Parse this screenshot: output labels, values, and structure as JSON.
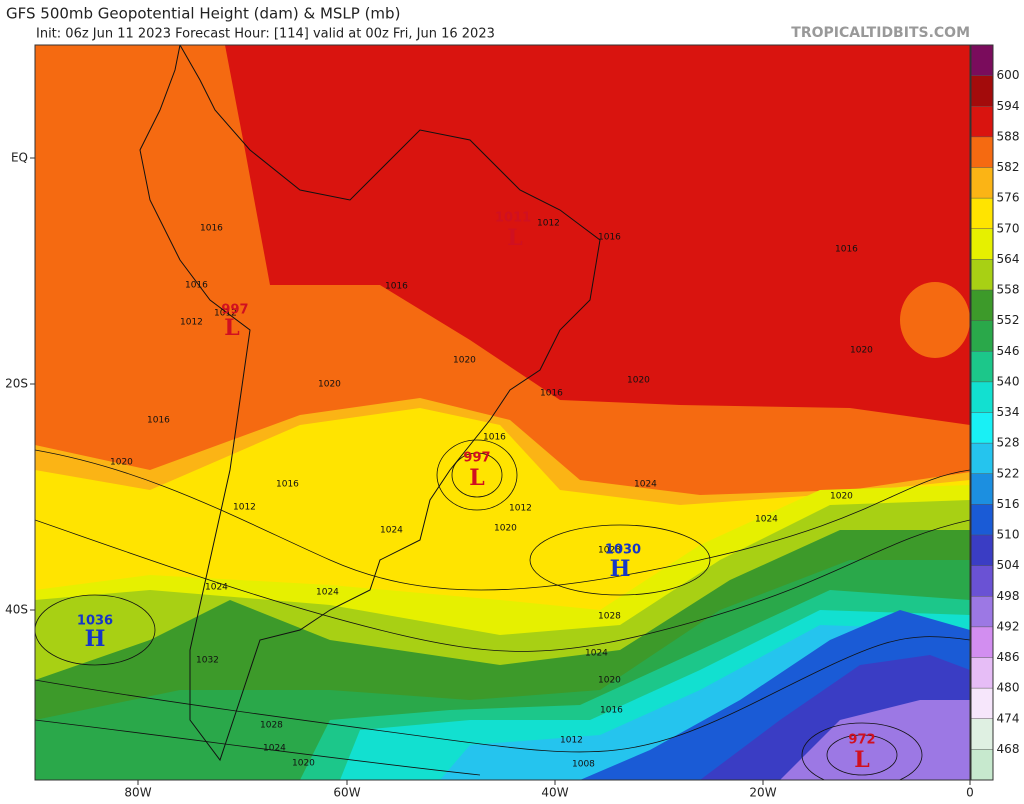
{
  "header": {
    "title": "GFS 500mb Geopotential Height (dam) & MSLP (mb)",
    "subtitle": "Init: 06z Jun 11 2023   Forecast Hour: [114]   valid at 00z Fri, Jun 16 2023",
    "site": "TROPICALTIDBITS.COM"
  },
  "colorbar": {
    "levels": [
      600,
      594,
      588,
      582,
      576,
      570,
      564,
      558,
      552,
      546,
      540,
      534,
      528,
      522,
      516,
      510,
      504,
      498,
      492,
      486,
      480,
      474,
      468
    ],
    "colors": [
      "#7a0c5c",
      "#a30b0b",
      "#d9140f",
      "#f56a11",
      "#fbb415",
      "#ffe400",
      "#e6f000",
      "#a8d014",
      "#3d9a2a",
      "#2aa84a",
      "#1cc78a",
      "#12e0d0",
      "#19f0f5",
      "#25c4ee",
      "#1c8fe0",
      "#1a5bd6",
      "#3a3dc4",
      "#6a52d4",
      "#9c78e4",
      "#d28ef0",
      "#e6bdf6",
      "#f6e6fb",
      "#dff0e2",
      "#c7e9ce"
    ]
  },
  "axes": {
    "lat_labels": [
      "EQ",
      "20S",
      "40S"
    ],
    "lon_labels": [
      "80W",
      "60W",
      "40W",
      "20W",
      "0"
    ]
  },
  "centers": [
    {
      "value": "1036",
      "letter": "H"
    },
    {
      "value": "1030",
      "letter": "H"
    },
    {
      "value": "997",
      "letter": "L"
    },
    {
      "value": "1011",
      "letter": "L"
    },
    {
      "value": "972",
      "letter": "L"
    },
    {
      "value": "997",
      "letter": "L"
    }
  ],
  "isobar_labels": [
    "1016",
    "1016",
    "1012",
    "1012",
    "1016",
    "1012",
    "1016",
    "1016",
    "1020",
    "1020",
    "1016",
    "1016",
    "1020",
    "1020",
    "1016",
    "1012",
    "1016",
    "1024",
    "1020",
    "1024",
    "1024",
    "1020",
    "1024",
    "1028",
    "1028",
    "1024",
    "1020",
    "1016",
    "1012",
    "1008",
    "1028",
    "1024",
    "1020",
    "1032",
    "1024",
    "1012",
    "1020"
  ]
}
